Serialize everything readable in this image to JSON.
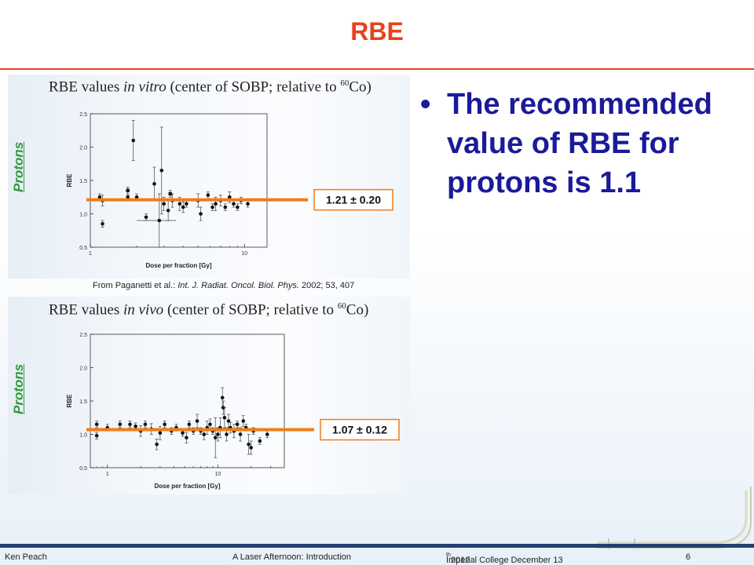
{
  "slide": {
    "title": "RBE",
    "bullet": "The recommended value of RBE for protons is 1.1",
    "bullet_marker": "•",
    "protons_label": "Protons",
    "citation_prefix": "From Paganetti et al.: ",
    "citation_journal": "Int. J. Radiat. Oncol. Biol. Phys.",
    "citation_suffix": " 2002; 53, 407",
    "title_color": "#e8421c",
    "bullet_color": "#1a1a9a",
    "label_color": "#2f9a3a",
    "line_color": "#f07c1a"
  },
  "footer": {
    "author": "Ken Peach",
    "talk": "A Laser Afternoon: Introduction",
    "venue_prefix": "Imperial College December 13",
    "venue_sup": "th",
    "venue_year": " 2012",
    "page": "6"
  },
  "chart_data": [
    {
      "type": "scatter",
      "title_prefix": "RBE values ",
      "title_italic": "in vitro",
      "title_suffix": " (center of SOBP; relative to ",
      "title_sup": "60",
      "title_end": "Co)",
      "xlabel": "Dose per fraction [Gy]",
      "ylabel": "RBE",
      "xscale": "log",
      "xlim": [
        1,
        14
      ],
      "ylim": [
        0.5,
        2.5
      ],
      "yticks": [
        "0.5",
        "1.0",
        "1.5",
        "2.0",
        "2.5"
      ],
      "xticks": [
        "1",
        "10"
      ],
      "fit_value": 1.21,
      "annotation": "1.21 ± 0.20",
      "points": [
        {
          "x": 1.15,
          "y": 1.25,
          "err": 0.05
        },
        {
          "x": 1.2,
          "y": 0.85,
          "err": 0.05
        },
        {
          "x": 1.2,
          "y": 1.2,
          "err": 0.08
        },
        {
          "x": 1.75,
          "y": 1.35,
          "err": 0.05,
          "marker": "square"
        },
        {
          "x": 1.75,
          "y": 1.25,
          "err": 0.03
        },
        {
          "x": 1.9,
          "y": 2.1,
          "err": 0.3
        },
        {
          "x": 2.0,
          "y": 1.25,
          "err": 0.05
        },
        {
          "x": 2.3,
          "y": 0.95,
          "err": 0.05
        },
        {
          "x": 2.6,
          "y": 1.45,
          "err": 0.25
        },
        {
          "x": 2.8,
          "y": 0.9,
          "err": 0.4,
          "xerr": 0.8
        },
        {
          "x": 2.9,
          "y": 1.65,
          "err": 0.65
        },
        {
          "x": 3.0,
          "y": 1.15,
          "err": 0.1
        },
        {
          "x": 3.2,
          "y": 1.05,
          "err": 0.15
        },
        {
          "x": 3.3,
          "y": 1.3,
          "err": 0.05,
          "marker": "square"
        },
        {
          "x": 3.4,
          "y": 1.2,
          "err": 0.1
        },
        {
          "x": 3.8,
          "y": 1.15,
          "err": 0.1
        },
        {
          "x": 4.0,
          "y": 1.1,
          "err": 0.08
        },
        {
          "x": 4.2,
          "y": 1.15,
          "err": 0.05
        },
        {
          "x": 5.0,
          "y": 1.2,
          "err": 0.1
        },
        {
          "x": 5.2,
          "y": 1.0,
          "err": 0.1
        },
        {
          "x": 5.8,
          "y": 1.28,
          "err": 0.05
        },
        {
          "x": 6.2,
          "y": 1.1,
          "err": 0.05
        },
        {
          "x": 6.5,
          "y": 1.15,
          "err": 0.1
        },
        {
          "x": 7.0,
          "y": 1.2,
          "err": 0.08
        },
        {
          "x": 7.5,
          "y": 1.1,
          "err": 0.05
        },
        {
          "x": 8.0,
          "y": 1.25,
          "err": 0.08
        },
        {
          "x": 8.5,
          "y": 1.15,
          "err": 0.05
        },
        {
          "x": 9.0,
          "y": 1.1,
          "err": 0.05
        },
        {
          "x": 9.5,
          "y": 1.2,
          "err": 0.05
        },
        {
          "x": 10.5,
          "y": 1.15,
          "err": 0.05
        }
      ]
    },
    {
      "type": "scatter",
      "title_prefix": "RBE values ",
      "title_italic": "in vivo",
      "title_suffix": " (center of SOBP; relative to ",
      "title_sup": "60",
      "title_end": "Co)",
      "xlabel": "Dose per fraction [Gy]",
      "ylabel": "RBE",
      "xscale": "log",
      "xlim": [
        0.7,
        40
      ],
      "ylim": [
        0.5,
        2.5
      ],
      "yticks": [
        "0.5",
        "1.0",
        "1.5",
        "2.0",
        "2.5"
      ],
      "xticks": [
        "1",
        "10"
      ],
      "fit_value": 1.07,
      "annotation": "1.07 ± 0.12",
      "points": [
        {
          "x": 0.8,
          "y": 1.15,
          "err": 0.05
        },
        {
          "x": 0.8,
          "y": 0.98,
          "err": 0.05
        },
        {
          "x": 1.0,
          "y": 1.1,
          "err": 0.05
        },
        {
          "x": 1.3,
          "y": 1.15,
          "err": 0.05
        },
        {
          "x": 1.6,
          "y": 1.15,
          "err": 0.05
        },
        {
          "x": 1.8,
          "y": 1.12,
          "err": 0.05
        },
        {
          "x": 2.0,
          "y": 1.05,
          "err": 0.08
        },
        {
          "x": 2.2,
          "y": 1.15,
          "err": 0.05
        },
        {
          "x": 2.5,
          "y": 1.08,
          "err": 0.08
        },
        {
          "x": 2.8,
          "y": 0.85,
          "err": 0.08
        },
        {
          "x": 3.0,
          "y": 1.02,
          "err": 0.1
        },
        {
          "x": 3.3,
          "y": 1.15,
          "err": 0.05
        },
        {
          "x": 3.8,
          "y": 1.05,
          "err": 0.05
        },
        {
          "x": 4.2,
          "y": 1.1,
          "err": 0.05
        },
        {
          "x": 4.8,
          "y": 1.02,
          "err": 0.05
        },
        {
          "x": 5.2,
          "y": 0.95,
          "err": 0.08
        },
        {
          "x": 5.5,
          "y": 1.15,
          "err": 0.05
        },
        {
          "x": 6.0,
          "y": 1.05,
          "err": 0.05
        },
        {
          "x": 6.5,
          "y": 1.2,
          "err": 0.1
        },
        {
          "x": 7.0,
          "y": 1.05,
          "err": 0.05
        },
        {
          "x": 7.5,
          "y": 1.0,
          "err": 0.08
        },
        {
          "x": 8.0,
          "y": 1.1,
          "err": 0.1
        },
        {
          "x": 8.5,
          "y": 1.15,
          "err": 0.08
        },
        {
          "x": 9.0,
          "y": 1.05,
          "err": 0.05
        },
        {
          "x": 9.5,
          "y": 0.95,
          "err": 0.3
        },
        {
          "x": 10.0,
          "y": 1.0,
          "err": 0.1
        },
        {
          "x": 10.5,
          "y": 1.1,
          "err": 0.15
        },
        {
          "x": 11.0,
          "y": 1.55,
          "err": 0.15
        },
        {
          "x": 11.2,
          "y": 1.4,
          "err": 0.1
        },
        {
          "x": 11.5,
          "y": 1.25,
          "err": 0.15
        },
        {
          "x": 12.0,
          "y": 1.0,
          "err": 0.1
        },
        {
          "x": 12.5,
          "y": 1.2,
          "err": 0.1
        },
        {
          "x": 13.0,
          "y": 1.1,
          "err": 0.08
        },
        {
          "x": 14.0,
          "y": 1.05,
          "err": 0.1
        },
        {
          "x": 15.0,
          "y": 1.15,
          "err": 0.05
        },
        {
          "x": 16.0,
          "y": 1.0,
          "err": 0.1
        },
        {
          "x": 17.0,
          "y": 1.2,
          "err": 0.08
        },
        {
          "x": 18.0,
          "y": 1.1,
          "err": 0.05
        },
        {
          "x": 19.0,
          "y": 0.85,
          "err": 0.15
        },
        {
          "x": 20.0,
          "y": 0.8,
          "err": 0.1
        },
        {
          "x": 21.0,
          "y": 1.05,
          "err": 0.05
        },
        {
          "x": 24.0,
          "y": 0.9,
          "err": 0.05
        },
        {
          "x": 28.0,
          "y": 1.0,
          "err": 0.05
        }
      ]
    }
  ]
}
